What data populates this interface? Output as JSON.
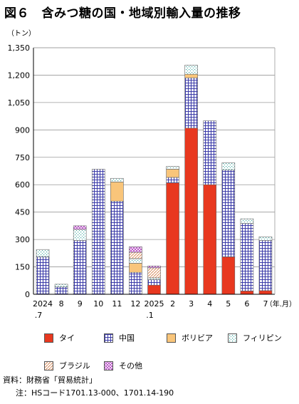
{
  "title": "図６　含みつ糖の国・地域別輸入量の推移",
  "chart_data": {
    "type": "bar",
    "stacked": true,
    "yunit": "（トン）",
    "xunit": "（年.月）",
    "ylim": [
      0,
      1350
    ],
    "yticks": [
      "1,350",
      "1,200",
      "1,050",
      "900",
      "750",
      "600",
      "450",
      "300",
      "150",
      "0"
    ],
    "ytick_values": [
      1350,
      1200,
      1050,
      900,
      750,
      600,
      450,
      300,
      150,
      0
    ],
    "categories": [
      {
        "line1": "2024",
        "line2": ".7"
      },
      {
        "line1": "8",
        "line2": ""
      },
      {
        "line1": "9",
        "line2": ""
      },
      {
        "line1": "10",
        "line2": ""
      },
      {
        "line1": "11",
        "line2": ""
      },
      {
        "line1": "12",
        "line2": ""
      },
      {
        "line1": "2025",
        "line2": ".1"
      },
      {
        "line1": "2",
        "line2": ""
      },
      {
        "line1": "3",
        "line2": ""
      },
      {
        "line1": "4",
        "line2": ""
      },
      {
        "line1": "5",
        "line2": ""
      },
      {
        "line1": "6",
        "line2": ""
      },
      {
        "line1": "7",
        "line2": ""
      }
    ],
    "series": [
      {
        "name": "タイ",
        "pattern": "solid",
        "color": "#e8381f",
        "values": [
          0,
          0,
          0,
          0,
          0,
          0,
          50,
          610,
          910,
          600,
          205,
          18,
          20
        ]
      },
      {
        "name": "中国",
        "pattern": "grid",
        "color": "#3a3aa8",
        "values": [
          205,
          40,
          295,
          685,
          510,
          120,
          30,
          30,
          275,
          350,
          475,
          370,
          275
        ]
      },
      {
        "name": "ボリビア",
        "pattern": "solid",
        "color": "#f9c57a",
        "values": [
          0,
          0,
          0,
          0,
          105,
          50,
          0,
          45,
          20,
          0,
          0,
          0,
          0
        ]
      },
      {
        "name": "フィリピン",
        "pattern": "dots",
        "color": "#3fa7a0",
        "values": [
          40,
          15,
          60,
          0,
          20,
          25,
          10,
          15,
          50,
          0,
          40,
          25,
          20
        ]
      },
      {
        "name": "ブラジル",
        "pattern": "diag",
        "color": "#d88a5a",
        "values": [
          0,
          0,
          0,
          0,
          0,
          35,
          55,
          0,
          0,
          0,
          0,
          0,
          0
        ]
      },
      {
        "name": "その他",
        "pattern": "cross",
        "color": "#b03cc0",
        "values": [
          0,
          0,
          20,
          0,
          0,
          30,
          10,
          0,
          0,
          0,
          0,
          0,
          0
        ]
      }
    ]
  },
  "notes": [
    "資料：財務省「貿易統計」",
    "注：HSコード1701.13-000、1701.14-190"
  ]
}
